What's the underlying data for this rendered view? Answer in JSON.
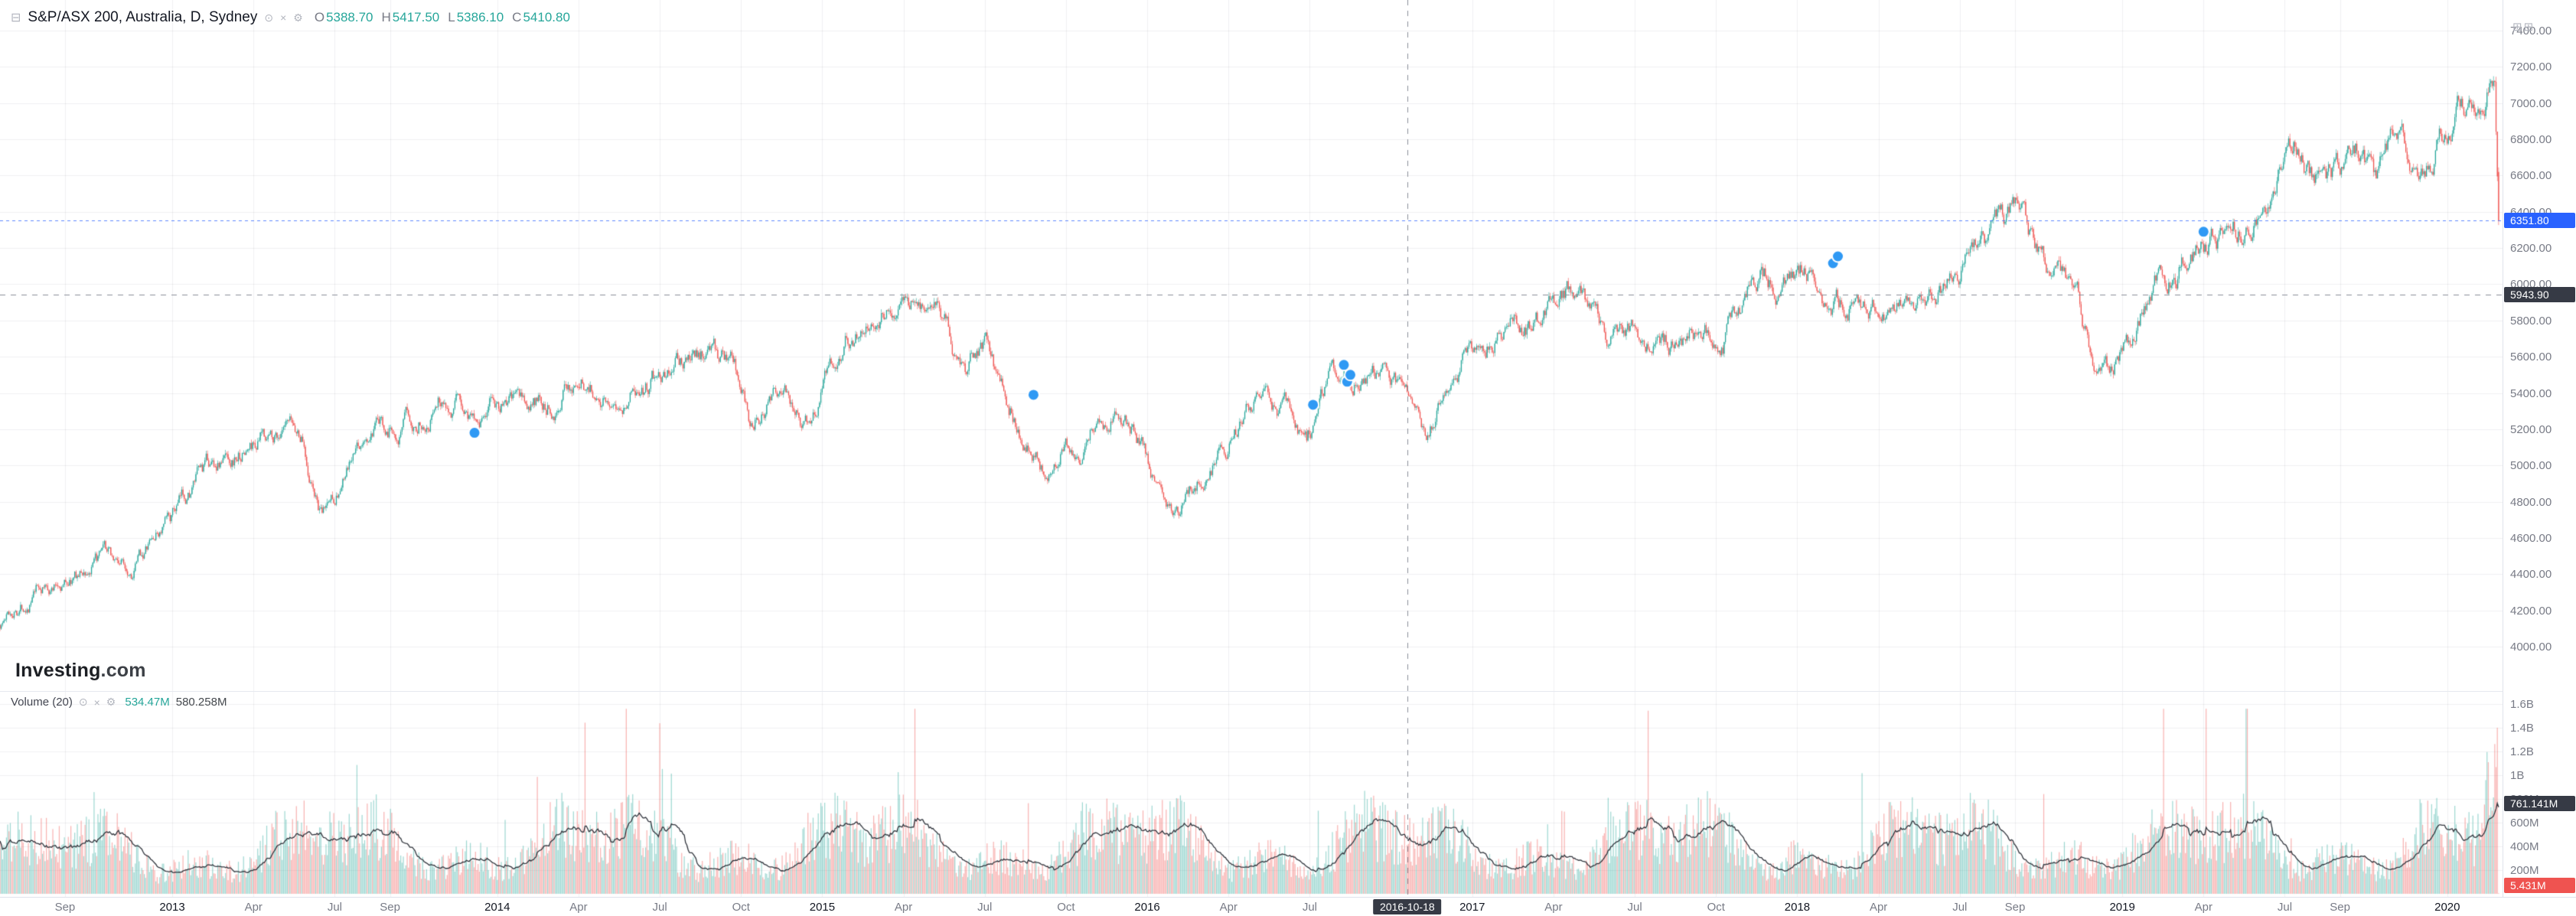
{
  "header": {
    "pane_icon_glyph": "⊟",
    "symbol": "S&P/ASX 200, Australia, D, Sydney",
    "icons": {
      "eye_glyph": "⊙",
      "close_glyph": "×",
      "gear_glyph": "⚙"
    },
    "ohlc": {
      "o_label": "O",
      "o": "5388.70",
      "h_label": "H",
      "h": "5417.50",
      "l_label": "L",
      "l": "5386.10",
      "c_label": "C",
      "c": "5410.80"
    }
  },
  "corner_icons_glyph": "⊞⊞",
  "watermark": {
    "brand": "Investing",
    "suffix": ".com"
  },
  "volume_legend": {
    "title": "Volume (20)",
    "icons": {
      "eye_glyph": "⊙",
      "close_glyph": "×",
      "gear_glyph": "⚙"
    },
    "value": "534.47M",
    "ma_value": "580.258M"
  },
  "price_axis": {
    "ticks": [
      "7400.00",
      "7200.00",
      "7000.00",
      "6800.00",
      "6600.00",
      "6400.00",
      "6200.00",
      "6000.00",
      "5800.00",
      "5600.00",
      "5400.00",
      "5200.00",
      "5000.00",
      "4800.00",
      "4600.00",
      "4400.00",
      "4200.00",
      "4000.00"
    ],
    "last_label": "6351.80",
    "crosshair_label": "5943.90"
  },
  "volume_axis": {
    "ticks": [
      {
        "label": "1.6B",
        "v": 1600000000
      },
      {
        "label": "1.4B",
        "v": 1400000000
      },
      {
        "label": "1.2B",
        "v": 1200000000
      },
      {
        "label": "1B",
        "v": 1000000000
      },
      {
        "label": "800M",
        "v": 800000000
      },
      {
        "label": "600M",
        "v": 600000000
      },
      {
        "label": "400M",
        "v": 400000000
      },
      {
        "label": "200M",
        "v": 200000000
      }
    ],
    "ma_last_label": "761.141M",
    "last_label": "5.431M"
  },
  "time_axis": {
    "crosshair_label": "2016-10-18",
    "ticks": [
      {
        "label": "Sep",
        "t": 2012.67
      },
      {
        "label": "2013",
        "t": 2013.0,
        "year": true
      },
      {
        "label": "Apr",
        "t": 2013.25
      },
      {
        "label": "Jul",
        "t": 2013.5
      },
      {
        "label": "Sep",
        "t": 2013.67
      },
      {
        "label": "2014",
        "t": 2014.0,
        "year": true
      },
      {
        "label": "Apr",
        "t": 2014.25
      },
      {
        "label": "Jul",
        "t": 2014.5
      },
      {
        "label": "Oct",
        "t": 2014.75
      },
      {
        "label": "2015",
        "t": 2015.0,
        "year": true
      },
      {
        "label": "Apr",
        "t": 2015.25
      },
      {
        "label": "Jul",
        "t": 2015.5
      },
      {
        "label": "Oct",
        "t": 2015.75
      },
      {
        "label": "2016",
        "t": 2016.0,
        "year": true
      },
      {
        "label": "Apr",
        "t": 2016.25
      },
      {
        "label": "Jul",
        "t": 2016.5
      },
      {
        "label": "2017",
        "t": 2017.0,
        "year": true
      },
      {
        "label": "Apr",
        "t": 2017.25
      },
      {
        "label": "Jul",
        "t": 2017.5
      },
      {
        "label": "Oct",
        "t": 2017.75
      },
      {
        "label": "2018",
        "t": 2018.0,
        "year": true
      },
      {
        "label": "Apr",
        "t": 2018.25
      },
      {
        "label": "Jul",
        "t": 2018.5
      },
      {
        "label": "Sep",
        "t": 2018.67
      },
      {
        "label": "2019",
        "t": 2019.0,
        "year": true
      },
      {
        "label": "Apr",
        "t": 2019.25
      },
      {
        "label": "Jul",
        "t": 2019.5
      },
      {
        "label": "Sep",
        "t": 2019.67
      },
      {
        "label": "2020",
        "t": 2020.0,
        "year": true
      }
    ]
  },
  "chart_data": {
    "type": "candlestick",
    "title": "S&P/ASX 200",
    "country": "Australia",
    "interval": "D",
    "exchange": "Sydney",
    "price_axis_range": [
      4000,
      7400
    ],
    "price_tick_step": 200,
    "volume_axis_range": [
      0,
      1600000000
    ],
    "time_range": [
      2012.47,
      2020.17
    ],
    "last_candle_time": 2020.158,
    "last_price": 6351.8,
    "crosshair": {
      "time": 2016.8,
      "price": 5943.9,
      "date_label": "2016-10-18"
    },
    "ohlc_at_crosshair": {
      "open": 5388.7,
      "high": 5417.5,
      "low": 5386.1,
      "close": 5410.8
    },
    "volume_at_crosshair": 534470000,
    "volume_ma_at_crosshair": 580258000,
    "volume_ma_last": 761141000,
    "volume_last": 5431000,
    "trend_keypoints": [
      [
        2012.47,
        4120
      ],
      [
        2012.58,
        4300
      ],
      [
        2012.71,
        4380
      ],
      [
        2012.79,
        4480
      ],
      [
        2012.88,
        4450
      ],
      [
        2013.0,
        4700
      ],
      [
        2013.08,
        4890
      ],
      [
        2013.17,
        5050
      ],
      [
        2013.33,
        5210
      ],
      [
        2013.4,
        5150
      ],
      [
        2013.46,
        4680
      ],
      [
        2013.58,
        5080
      ],
      [
        2013.71,
        5250
      ],
      [
        2013.82,
        5420
      ],
      [
        2013.92,
        5280
      ],
      [
        2013.98,
        5350
      ],
      [
        2014.1,
        5290
      ],
      [
        2014.25,
        5500
      ],
      [
        2014.33,
        5450
      ],
      [
        2014.45,
        5430
      ],
      [
        2014.55,
        5580
      ],
      [
        2014.66,
        5650
      ],
      [
        2014.73,
        5550
      ],
      [
        2014.78,
        5250
      ],
      [
        2014.87,
        5480
      ],
      [
        2014.96,
        5230
      ],
      [
        2015.07,
        5750
      ],
      [
        2015.16,
        5900
      ],
      [
        2015.28,
        5960
      ],
      [
        2015.35,
        5800
      ],
      [
        2015.44,
        5500
      ],
      [
        2015.51,
        5680
      ],
      [
        2015.56,
        5400
      ],
      [
        2015.63,
        5150
      ],
      [
        2015.68,
        5020
      ],
      [
        2015.74,
        5200
      ],
      [
        2015.8,
        5100
      ],
      [
        2015.85,
        5250
      ],
      [
        2015.9,
        5280
      ],
      [
        2015.96,
        5150
      ],
      [
        2016.03,
        4950
      ],
      [
        2016.1,
        4780
      ],
      [
        2016.16,
        4950
      ],
      [
        2016.21,
        5080
      ],
      [
        2016.29,
        5230
      ],
      [
        2016.36,
        5350
      ],
      [
        2016.44,
        5300
      ],
      [
        2016.49,
        5150
      ],
      [
        2016.55,
        5400
      ],
      [
        2016.6,
        5560
      ],
      [
        2016.67,
        5530
      ],
      [
        2016.74,
        5440
      ],
      [
        2016.8,
        5410
      ],
      [
        2016.86,
        5190
      ],
      [
        2016.93,
        5480
      ],
      [
        2016.99,
        5690
      ],
      [
        2017.1,
        5760
      ],
      [
        2017.2,
        5800
      ],
      [
        2017.32,
        5940
      ],
      [
        2017.42,
        5720
      ],
      [
        2017.52,
        5740
      ],
      [
        2017.6,
        5690
      ],
      [
        2017.68,
        5740
      ],
      [
        2017.77,
        5690
      ],
      [
        2017.87,
        5980
      ],
      [
        2017.97,
        6060
      ],
      [
        2018.04,
        6100
      ],
      [
        2018.1,
        5860
      ],
      [
        2018.18,
        5940
      ],
      [
        2018.26,
        5780
      ],
      [
        2018.35,
        5940
      ],
      [
        2018.44,
        6010
      ],
      [
        2018.52,
        6190
      ],
      [
        2018.6,
        6280
      ],
      [
        2018.66,
        6350
      ],
      [
        2018.74,
        6200
      ],
      [
        2018.8,
        6050
      ],
      [
        2018.86,
        5870
      ],
      [
        2018.9,
        5670
      ],
      [
        2018.96,
        5560
      ],
      [
        2019.03,
        5700
      ],
      [
        2019.1,
        6020
      ],
      [
        2019.17,
        6100
      ],
      [
        2019.25,
        6180
      ],
      [
        2019.32,
        6280
      ],
      [
        2019.4,
        6380
      ],
      [
        2019.47,
        6550
      ],
      [
        2019.53,
        6780
      ],
      [
        2019.58,
        6580
      ],
      [
        2019.62,
        6480
      ],
      [
        2019.68,
        6630
      ],
      [
        2019.73,
        6700
      ],
      [
        2019.78,
        6550
      ],
      [
        2019.85,
        6830
      ],
      [
        2019.92,
        6740
      ],
      [
        2019.98,
        6820
      ],
      [
        2020.04,
        7010
      ],
      [
        2020.09,
        7080
      ],
      [
        2020.13,
        7150
      ],
      [
        2020.145,
        7180
      ],
      [
        2020.158,
        6400
      ]
    ],
    "markers": [
      [
        2013.93,
        5180
      ],
      [
        2015.65,
        5390
      ],
      [
        2016.51,
        5335
      ],
      [
        2016.605,
        5555
      ],
      [
        2016.615,
        5462
      ],
      [
        2016.625,
        5500
      ],
      [
        2018.11,
        6116
      ],
      [
        2018.125,
        6154
      ],
      [
        2019.25,
        6290
      ]
    ],
    "colors": {
      "up": "#26a69a",
      "down": "#ef5350",
      "vol_up": "rgba(38,166,154,0.45)",
      "vol_down": "rgba(239,83,80,0.45)",
      "vol_ma": "#30343c",
      "last_price_line": "rgba(41,98,255,0.75)",
      "crosshair": "#8a8e99",
      "marker": "#2f99f4",
      "grid": "rgba(42,46,57,0.07)",
      "accent_badge": "#2962ff",
      "dark_badge": "#363a45",
      "red_badge": "#ef5350"
    }
  }
}
